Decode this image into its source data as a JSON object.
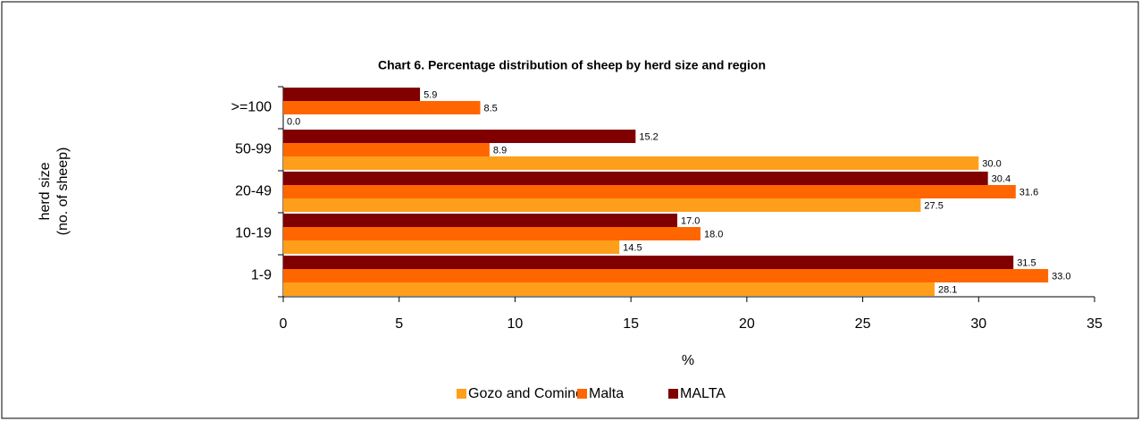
{
  "chart_data": {
    "type": "barh",
    "title": "Chart 6.  Percentage distribution of sheep by herd size and region",
    "xlabel": "%",
    "ylabel": [
      "herd size",
      "(no. of sheep)"
    ],
    "categories": [
      ">=100",
      "50-99",
      "20-49",
      "10-19",
      "1-9"
    ],
    "series": [
      {
        "name": "Gozo and Comino",
        "color": "#ff9e1a",
        "values": [
          0.0,
          30.0,
          27.5,
          14.5,
          28.1
        ],
        "value_labels": [
          "0.0",
          "30.0",
          "27.5",
          "14.5",
          "28.1"
        ]
      },
      {
        "name": "Malta",
        "color": "#ff6600",
        "values": [
          8.5,
          8.9,
          31.6,
          18.0,
          33.0
        ],
        "value_labels": [
          "8.5",
          "8.9",
          "31.6",
          "18.0",
          "33.0"
        ]
      },
      {
        "name": "MALTA",
        "color": "#800000",
        "values": [
          5.9,
          15.2,
          30.4,
          17.0,
          31.5
        ],
        "value_labels": [
          "5.9",
          "15.2",
          "30.4",
          "17.0",
          "31.5"
        ]
      }
    ],
    "xlim": [
      0,
      35
    ],
    "xticks": [
      0,
      5,
      10,
      15,
      20,
      25,
      30,
      35
    ],
    "legend": "bottom"
  }
}
